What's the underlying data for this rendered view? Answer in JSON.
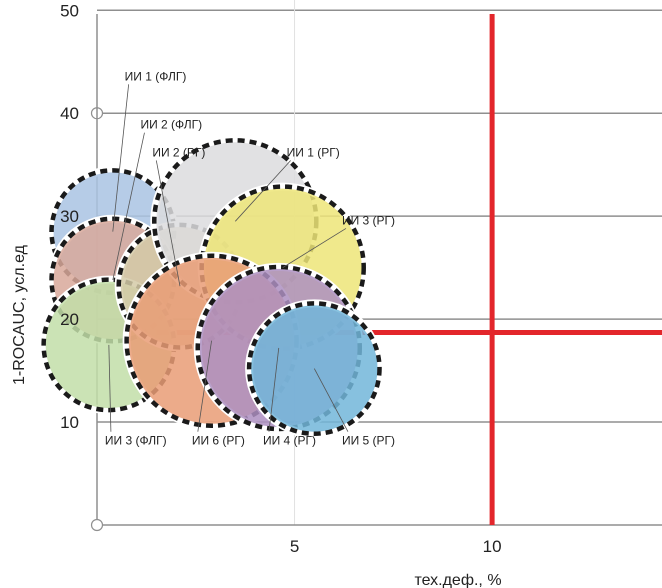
{
  "chart_data": {
    "type": "bubble",
    "xlabel": "тех.деф., %",
    "ylabel": "1-ROCAUC, усл.ед",
    "xlim": [
      0,
      14.3
    ],
    "ylim": [
      0,
      51
    ],
    "x_ticks": [
      {
        "value": 5,
        "label": "5"
      },
      {
        "value": 10,
        "label": "10"
      }
    ],
    "y_ticks": [
      {
        "value": 10,
        "label": "10"
      },
      {
        "value": 20,
        "label": "20"
      },
      {
        "value": 30,
        "label": "30"
      },
      {
        "value": 40,
        "label": "40"
      },
      {
        "value": 50,
        "label": "50"
      }
    ],
    "grid": true,
    "thresholds": {
      "x": 10,
      "y": 18.7,
      "color": "#e3262b"
    },
    "bubbles": [
      {
        "label": "ИИ 1 (ФЛГ)",
        "x": 0.4,
        "y": 28.5,
        "r": 1.5,
        "color": "#a9c3e3",
        "annotation": {
          "x": 0.7,
          "y": 43.2,
          "anchor": "start"
        }
      },
      {
        "label": "ИИ 2 (ФЛГ)",
        "x": 0.4,
        "y": 23.8,
        "r": 1.5,
        "color": "#d8a89a",
        "annotation": {
          "x": 1.1,
          "y": 38.5,
          "anchor": "start"
        }
      },
      {
        "label": "ИИ 3 (ФЛГ)",
        "x": 0.3,
        "y": 17.5,
        "r": 1.6,
        "color": "#c2dea8",
        "annotation": {
          "x": 0.2,
          "y": 7.8,
          "anchor": "start"
        }
      },
      {
        "label": "ИИ 2 (РГ)",
        "x": 2.1,
        "y": 23.2,
        "r": 1.5,
        "color": "#d3caa7",
        "annotation": {
          "x": 1.4,
          "y": 35.8,
          "anchor": "start"
        }
      },
      {
        "label": "ИИ 1 (РГ)",
        "x": 3.5,
        "y": 29.5,
        "r": 2.0,
        "color": "#dcdcde",
        "annotation": {
          "x": 4.8,
          "y": 35.8,
          "anchor": "start"
        }
      },
      {
        "label": "ИИ 3 (РГ)",
        "x": 4.7,
        "y": 25.0,
        "r": 2.0,
        "color": "#ede578",
        "annotation": {
          "x": 6.2,
          "y": 29.2,
          "anchor": "start"
        }
      },
      {
        "label": "ИИ 6 (РГ)",
        "x": 2.9,
        "y": 17.9,
        "r": 2.1,
        "color": "#e99c76",
        "annotation": {
          "x": 2.4,
          "y": 7.8,
          "anchor": "start"
        }
      },
      {
        "label": "ИИ 4 (РГ)",
        "x": 4.6,
        "y": 17.2,
        "r": 2.0,
        "color": "#ad8fc1",
        "annotation": {
          "x": 4.2,
          "y": 7.8,
          "anchor": "start"
        }
      },
      {
        "label": "ИИ 5 (РГ)",
        "x": 5.5,
        "y": 15.2,
        "r": 1.6,
        "color": "#72b6d9",
        "annotation": {
          "x": 6.2,
          "y": 7.8,
          "anchor": "start"
        }
      }
    ]
  }
}
